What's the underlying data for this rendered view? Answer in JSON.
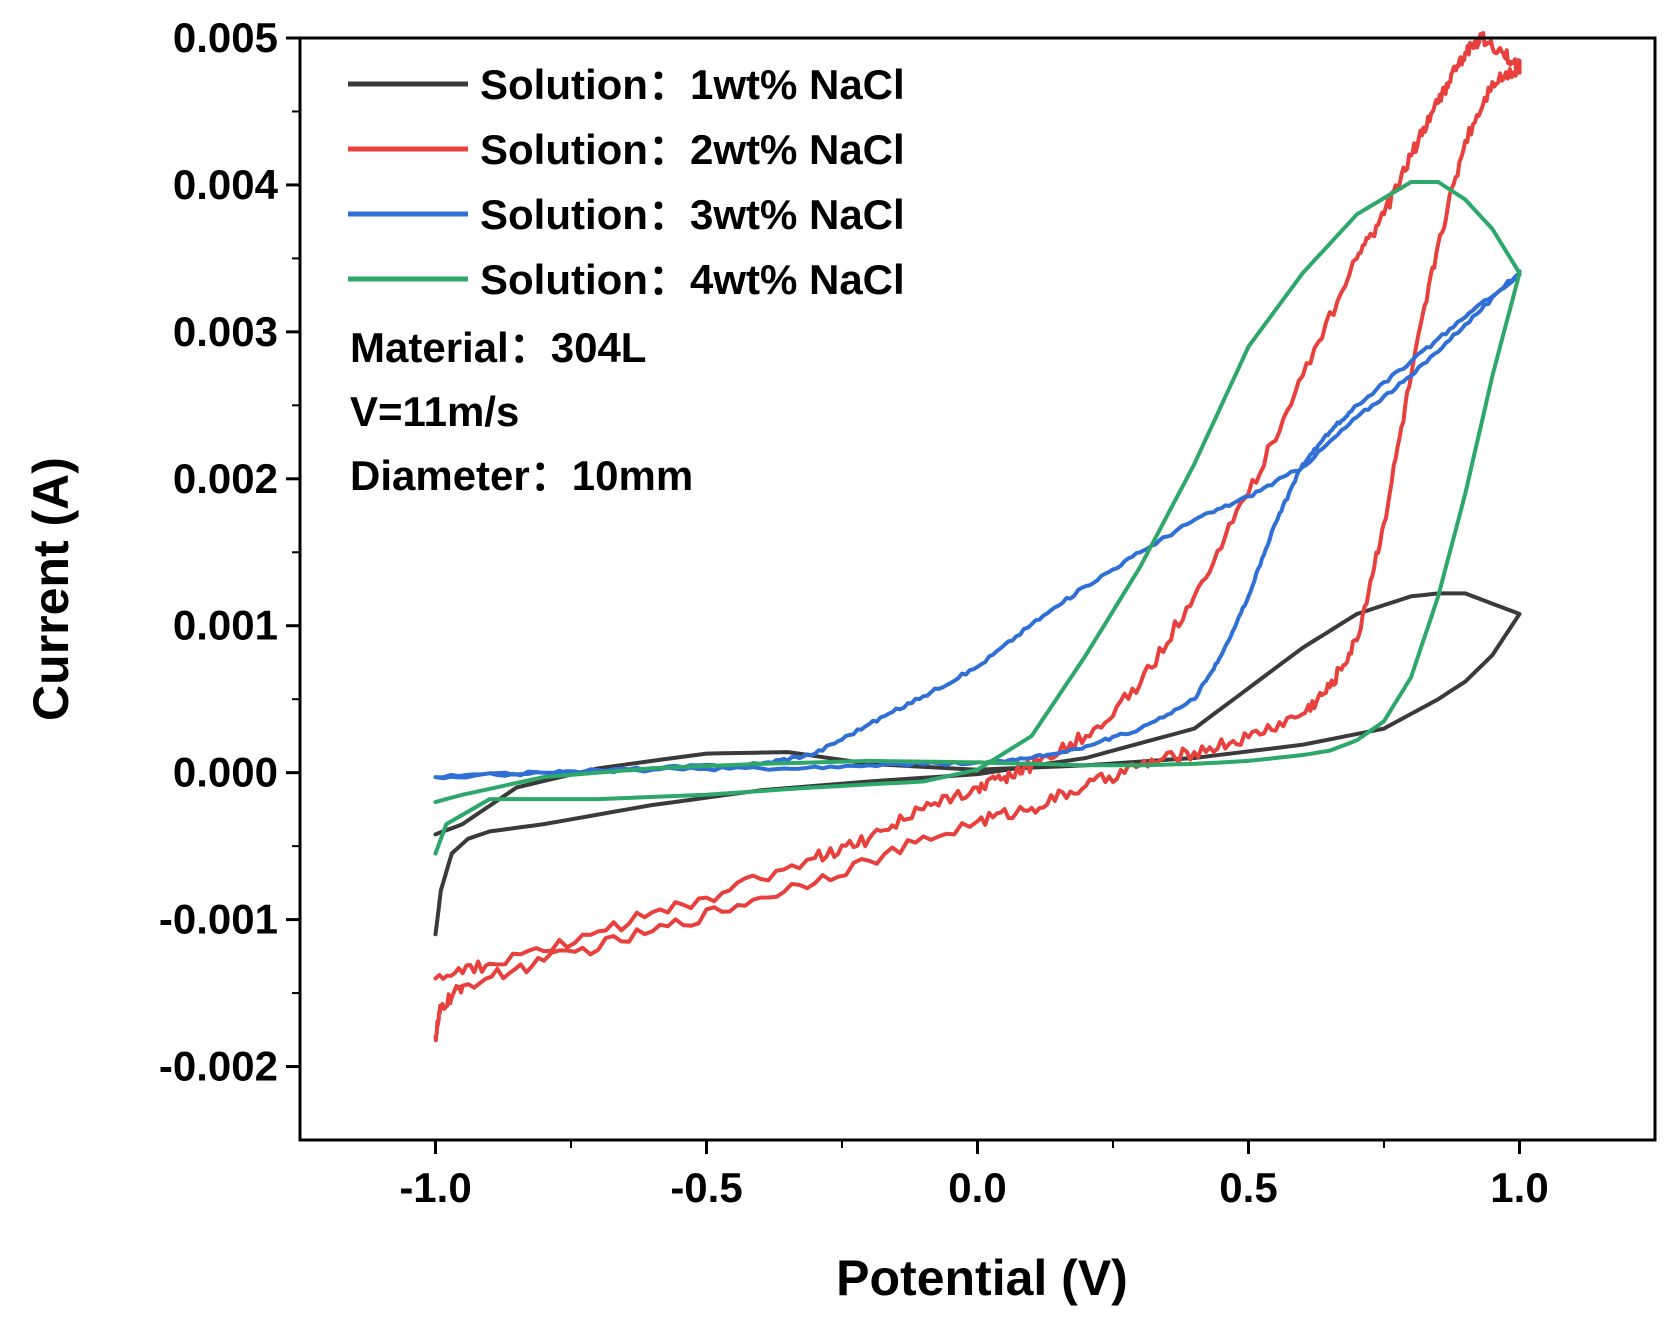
{
  "chart_data": {
    "type": "line",
    "title": "",
    "xlabel": "Potential (V)",
    "ylabel": "Current (A)",
    "xlim": [
      -1.25,
      1.25
    ],
    "ylim": [
      -0.0025,
      0.005
    ],
    "grid": false,
    "legend_position": "top-left",
    "x_ticks": [
      -1.0,
      -0.5,
      0.0,
      0.5,
      1.0
    ],
    "x_tick_labels": [
      "-1.0",
      "-0.5",
      "0.0",
      "0.5",
      "1.0"
    ],
    "y_ticks": [
      -0.002,
      -0.001,
      0.0,
      0.001,
      0.002,
      0.003,
      0.004,
      0.005
    ],
    "y_tick_labels": [
      "-0.002",
      "-0.001",
      "0.000",
      "0.001",
      "0.002",
      "0.003",
      "0.004",
      "0.005"
    ],
    "series": [
      {
        "name": "Solution：1wt% NaCl",
        "color": "#3a3a3a",
        "noise": 0,
        "x": [
          -1.0,
          -0.99,
          -0.97,
          -0.94,
          -0.9,
          -0.8,
          -0.6,
          -0.4,
          -0.2,
          0.0,
          0.2,
          0.4,
          0.6,
          0.7,
          0.8,
          0.85,
          0.9,
          0.95,
          1.0,
          1.0,
          0.95,
          0.9,
          0.85,
          0.8,
          0.75,
          0.6,
          0.4,
          0.2,
          0.0,
          -0.2,
          -0.35,
          -0.5,
          -0.7,
          -0.85,
          -0.95,
          -1.0
        ],
        "y": [
          -0.0011,
          -0.0008,
          -0.00055,
          -0.00045,
          -0.0004,
          -0.00035,
          -0.00022,
          -0.00012,
          -6e-05,
          -1e-05,
          0.0001,
          0.0003,
          0.00085,
          0.00108,
          0.0012,
          0.00122,
          0.00122,
          0.00115,
          0.00108,
          0.00108,
          0.0008,
          0.00062,
          0.0005,
          0.0004,
          0.0003,
          0.00019,
          0.0001,
          5e-05,
          2e-05,
          6e-05,
          0.00014,
          0.00013,
          3e-05,
          -0.0001,
          -0.00035,
          -0.00042
        ]
      },
      {
        "name": "Solution：2wt% NaCl",
        "color": "#e8403d",
        "noise": 4.5e-05,
        "x": [
          -1.0,
          -0.99,
          -0.95,
          -0.8,
          -0.6,
          -0.4,
          -0.2,
          0.0,
          0.1,
          0.2,
          0.3,
          0.4,
          0.5,
          0.6,
          0.65,
          0.7,
          0.75,
          0.8,
          0.85,
          0.9,
          0.95,
          1.0,
          1.0,
          0.97,
          0.93,
          0.9,
          0.87,
          0.84,
          0.8,
          0.75,
          0.7,
          0.6,
          0.5,
          0.4,
          0.3,
          0.2,
          0.1,
          0.05,
          0.0,
          -0.1,
          -0.2,
          -0.3,
          -0.5,
          -0.7,
          -0.9,
          -1.0
        ],
        "y": [
          -0.0018,
          -0.0016,
          -0.00145,
          -0.00128,
          -0.00108,
          -0.00085,
          -0.0006,
          -0.00033,
          -0.00024,
          -9e-05,
          5e-05,
          0.00014,
          0.00024,
          0.0004,
          0.00058,
          0.0009,
          0.0017,
          0.0027,
          0.0036,
          0.0043,
          0.0047,
          0.0048,
          0.0048,
          0.0049,
          0.005,
          0.0049,
          0.0047,
          0.0045,
          0.0042,
          0.0038,
          0.0035,
          0.0027,
          0.0019,
          0.0012,
          0.0006,
          0.00025,
          5e-05,
          -3e-05,
          -0.0001,
          -0.00025,
          -0.00045,
          -0.00058,
          -0.00085,
          -0.00108,
          -0.0013,
          -0.0014
        ]
      },
      {
        "name": "Solution：3wt% NaCl",
        "color": "#2f6fd6",
        "noise": 1.2e-05,
        "x": [
          -1.0,
          -0.8,
          -0.6,
          -0.4,
          -0.3,
          -0.2,
          -0.1,
          0.0,
          0.1,
          0.2,
          0.3,
          0.4,
          0.5,
          0.6,
          0.7,
          0.8,
          0.9,
          1.0,
          1.0,
          0.9,
          0.8,
          0.7,
          0.65,
          0.6,
          0.55,
          0.5,
          0.45,
          0.4,
          0.3,
          0.2,
          0.1,
          0.0,
          -0.2,
          -0.4,
          -0.6,
          -0.8,
          -1.0
        ],
        "y": [
          -3e-05,
          0.0,
          3e-05,
          6e-05,
          0.00013,
          0.00033,
          0.00052,
          0.00072,
          0.00101,
          0.00127,
          0.0015,
          0.00172,
          0.00188,
          0.00208,
          0.00242,
          0.0027,
          0.00305,
          0.0034,
          0.0034,
          0.0031,
          0.0028,
          0.0025,
          0.00232,
          0.0021,
          0.0017,
          0.0012,
          0.0008,
          0.0005,
          0.0003,
          0.00018,
          0.0001,
          7e-05,
          5e-05,
          3e-05,
          2e-05,
          0.0,
          -3e-05
        ]
      },
      {
        "name": "Solution：4wt% NaCl",
        "color": "#2ea869",
        "noise": 0,
        "x": [
          -1.0,
          -0.98,
          -0.9,
          -0.7,
          -0.5,
          -0.3,
          -0.1,
          0.0,
          0.1,
          0.2,
          0.3,
          0.4,
          0.5,
          0.6,
          0.7,
          0.8,
          0.85,
          0.9,
          0.95,
          1.0,
          1.0,
          0.95,
          0.9,
          0.85,
          0.8,
          0.75,
          0.7,
          0.65,
          0.6,
          0.5,
          0.4,
          0.3,
          0.2,
          0.1,
          0.0,
          -0.2,
          -0.4,
          -0.6,
          -0.8,
          -0.95,
          -1.0
        ],
        "y": [
          -0.00055,
          -0.00035,
          -0.00018,
          -0.00018,
          -0.00015,
          -0.0001,
          -6e-05,
          2e-05,
          0.00025,
          0.0008,
          0.0014,
          0.0021,
          0.0029,
          0.0034,
          0.0038,
          0.00402,
          0.00402,
          0.0039,
          0.0037,
          0.0034,
          0.0034,
          0.0027,
          0.0019,
          0.0012,
          0.00065,
          0.00035,
          0.00022,
          0.00015,
          0.00012,
          8e-05,
          6e-05,
          5e-05,
          5e-05,
          6e-05,
          7e-05,
          8e-05,
          6e-05,
          3e-05,
          -3e-05,
          -0.00015,
          -0.0002
        ]
      }
    ],
    "annotations": [
      "Material：304L",
      "V=11m/s",
      "Diameter：10mm"
    ]
  }
}
